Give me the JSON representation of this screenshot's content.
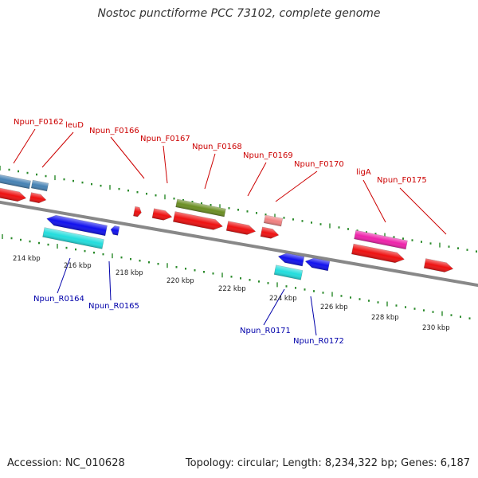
{
  "title": "Nostoc punctiforme PCC 73102, complete genome",
  "footer": {
    "accession": "Accession: NC_010628",
    "topology": "Topology: circular; Length: 8,234,322 bp; Genes: 6,187"
  },
  "colors": {
    "forward_label": "#cc0000",
    "reverse_label": "#0000aa",
    "tick": "#2a8a2a",
    "backbone": "#888888",
    "gene_red": "#ee1111",
    "gene_blue": "#1111ee",
    "gene_cyan": "#22dddd",
    "gene_olive": "#6b8e23",
    "gene_steelblue": "#4682b4",
    "gene_pink": "#f08080",
    "gene_magenta": "#ee22aa"
  },
  "scale_labels": [
    "214 kbp",
    "216 kbp",
    "218 kbp",
    "220 kbp",
    "222 kbp",
    "224 kbp",
    "226 kbp",
    "228 kbp",
    "230 kbp"
  ],
  "forward_labels": [
    "Npun_F0162",
    "leuD",
    "Npun_F0166",
    "Npun_F0167",
    "Npun_F0168",
    "Npun_F0169",
    "Npun_F0170",
    "ligA",
    "Npun_F0175"
  ],
  "reverse_labels": [
    "Npun_R0164",
    "Npun_R0165",
    "Npun_R0171",
    "Npun_R0172"
  ]
}
